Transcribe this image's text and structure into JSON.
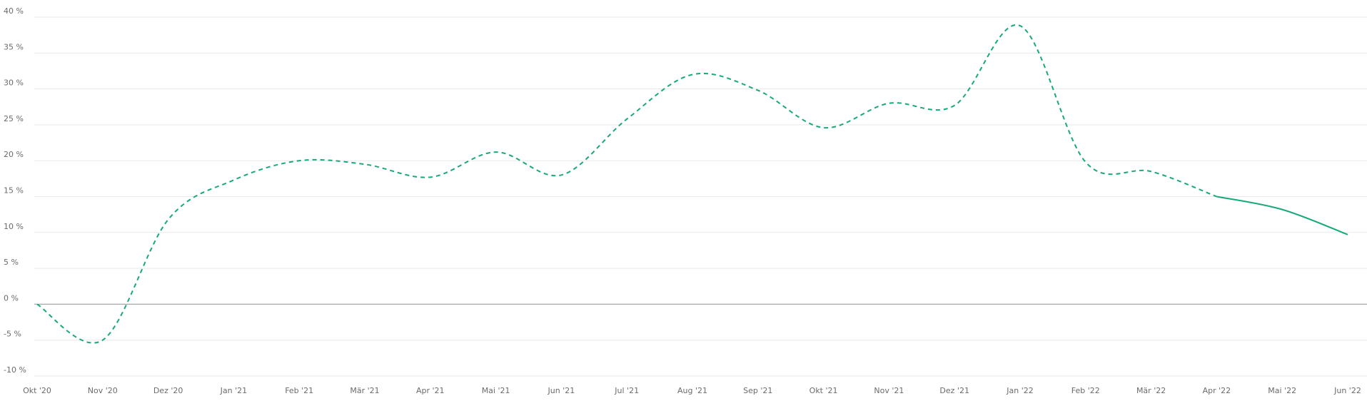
{
  "chart_data": {
    "type": "line",
    "categories": [
      "Okt '20",
      "Nov '20",
      "Dez '20",
      "Jan '21",
      "Feb '21",
      "Mär '21",
      "Apr '21",
      "Mai '21",
      "Jun '21",
      "Jul '21",
      "Aug '21",
      "Sep '21",
      "Okt '21",
      "Nov '21",
      "Dez '21",
      "Jan '22",
      "Feb '22",
      "Mär '22",
      "Apr '22",
      "Mai '22",
      "Jun '22"
    ],
    "series": [
      {
        "color": "#17a97c",
        "style": "dashed",
        "values": [
          0,
          -5,
          11.8,
          17.3,
          20,
          19.5,
          17.7,
          21.2,
          18,
          25.8,
          32,
          29.8,
          24.6,
          28,
          27.7,
          38.8,
          19.8,
          18.5,
          15,
          null,
          null
        ]
      },
      {
        "color": "#17a97c",
        "style": "solid",
        "values": [
          null,
          null,
          null,
          null,
          null,
          null,
          null,
          null,
          null,
          null,
          null,
          null,
          null,
          null,
          null,
          null,
          null,
          null,
          15,
          13.2,
          9.7
        ]
      }
    ],
    "ylim": [
      -10,
      40
    ],
    "yticks": [
      {
        "value": -10,
        "label": "-10 %"
      },
      {
        "value": -5,
        "label": "-5 %"
      },
      {
        "value": 0,
        "label": "0 %"
      },
      {
        "value": 5,
        "label": "5 %"
      },
      {
        "value": 10,
        "label": "10 %"
      },
      {
        "value": 15,
        "label": "15 %"
      },
      {
        "value": 20,
        "label": "20 %"
      },
      {
        "value": 25,
        "label": "25 %"
      },
      {
        "value": 30,
        "label": "30 %"
      },
      {
        "value": 35,
        "label": "35 %"
      },
      {
        "value": 40,
        "label": "40 %"
      }
    ],
    "grid": true
  }
}
